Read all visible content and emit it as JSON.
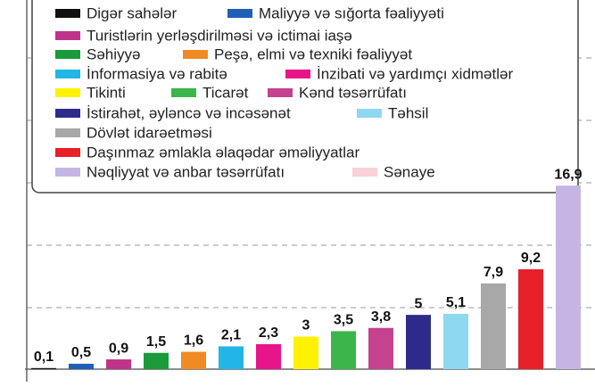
{
  "chart_data": {
    "type": "bar",
    "categories": [
      "Digər sahələr",
      "Maliyyə və sığorta fəaliyyəti",
      "Turistlərin yerləşdirilməsi və ictimai iaşə",
      "Səhiyyə",
      "Peşə, elmi və texniki fəaliyyət",
      "İnformasiya və rabitə",
      "İnzibati və yardımçı xidmətlər",
      "Tikinti",
      "Ticarət",
      "Kənd təsərrüfatı",
      "İstirahət, əyləncə və incəsənət",
      "Təhsil",
      "Dövlət idarəetməsi",
      "Daşınmaz əmlakla əlaqədar əməliyyatlar",
      "Nəqliyyat və anbar təsərrüfatı",
      "Sənaye"
    ],
    "values": [
      0.1,
      0.5,
      0.9,
      1.5,
      1.6,
      2.1,
      2.3,
      3,
      3.5,
      3.8,
      5,
      5.1,
      7.9,
      9.2,
      16.9,
      null
    ],
    "value_labels": [
      "0,1",
      "0,5",
      "0,9",
      "1,5",
      "1,6",
      "2,1",
      "2,3",
      "3",
      "3,5",
      "3,8",
      "5",
      "5,1",
      "7,9",
      "9,2",
      "16,9",
      null
    ],
    "colors": [
      "#111111",
      "#1f5fb5",
      "#c0338a",
      "#1a9a3a",
      "#f08a24",
      "#22b5e5",
      "#e8158a",
      "#fff200",
      "#3cb54a",
      "#c5428f",
      "#2e2a8c",
      "#8fd8f2",
      "#a8a8a8",
      "#e8202a",
      "#c5b5e5",
      "#f8d0d8"
    ],
    "ylim": [
      0,
      34
    ]
  }
}
